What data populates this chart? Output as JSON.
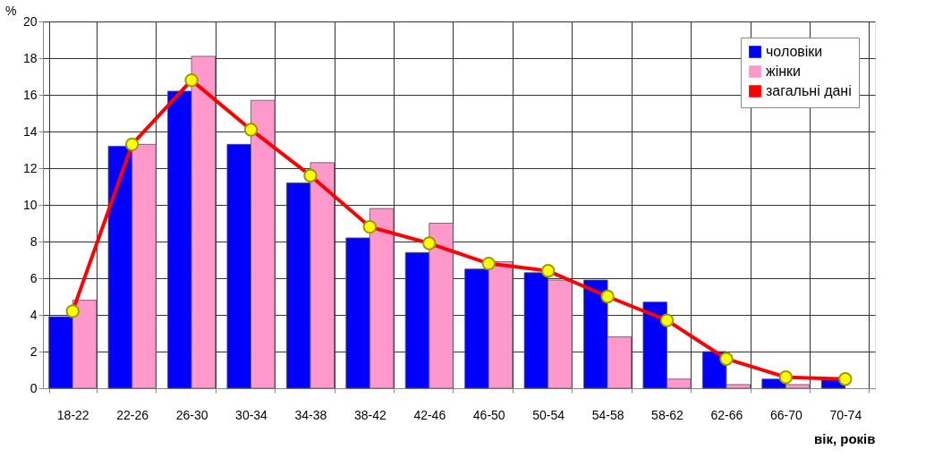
{
  "chart_data": {
    "type": "bar",
    "ylabel": "%",
    "xlabel": "вік, років",
    "categories": [
      "18-22",
      "22-26",
      "26-30",
      "30-34",
      "34-38",
      "38-42",
      "42-46",
      "46-50",
      "50-54",
      "54-58",
      "58-62",
      "62-66",
      "66-70",
      "70-74"
    ],
    "series": [
      {
        "name": "чоловіки",
        "color": "#0000ff",
        "values": [
          3.9,
          13.2,
          16.2,
          13.3,
          11.2,
          8.2,
          7.4,
          6.5,
          6.3,
          5.9,
          4.7,
          2.0,
          0.5,
          0.5
        ]
      },
      {
        "name": "жінки",
        "color": "#ff99cc",
        "values": [
          4.8,
          13.3,
          18.1,
          15.7,
          12.3,
          9.8,
          9.0,
          6.9,
          5.9,
          2.8,
          0.5,
          0.2,
          0.2,
          null
        ]
      },
      {
        "name": "загальні дані",
        "type": "line",
        "color": "#ff0000",
        "marker": "circle",
        "values": [
          4.2,
          13.3,
          16.8,
          14.1,
          11.6,
          8.8,
          7.9,
          6.8,
          6.4,
          5.0,
          3.7,
          1.6,
          0.6,
          0.5
        ]
      }
    ],
    "ylim": [
      0,
      20
    ],
    "yticks": [
      0,
      2,
      4,
      6,
      8,
      10,
      12,
      14,
      16,
      18,
      20
    ],
    "grid": true,
    "legend": "top right"
  }
}
